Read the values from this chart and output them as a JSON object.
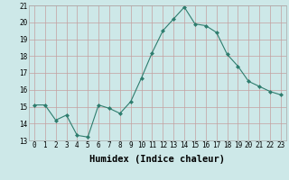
{
  "x": [
    0,
    1,
    2,
    3,
    4,
    5,
    6,
    7,
    8,
    9,
    10,
    11,
    12,
    13,
    14,
    15,
    16,
    17,
    18,
    19,
    20,
    21,
    22,
    23
  ],
  "y": [
    15.1,
    15.1,
    14.2,
    14.5,
    13.3,
    13.2,
    15.1,
    14.9,
    14.6,
    15.3,
    16.7,
    18.2,
    19.5,
    20.2,
    20.9,
    19.9,
    19.8,
    19.4,
    18.1,
    17.4,
    16.5,
    16.2,
    15.9,
    15.7
  ],
  "xlabel": "Humidex (Indice chaleur)",
  "xlim": [
    -0.5,
    23.5
  ],
  "ylim": [
    13,
    21
  ],
  "yticks": [
    13,
    14,
    15,
    16,
    17,
    18,
    19,
    20,
    21
  ],
  "xticks": [
    0,
    1,
    2,
    3,
    4,
    5,
    6,
    7,
    8,
    9,
    10,
    11,
    12,
    13,
    14,
    15,
    16,
    17,
    18,
    19,
    20,
    21,
    22,
    23
  ],
  "line_color": "#2e7d6e",
  "marker": "D",
  "marker_size": 2.0,
  "bg_color": "#cde8e8",
  "grid_color": "#c4a0a0",
  "label_fontsize": 7.5,
  "tick_fontsize": 5.5
}
